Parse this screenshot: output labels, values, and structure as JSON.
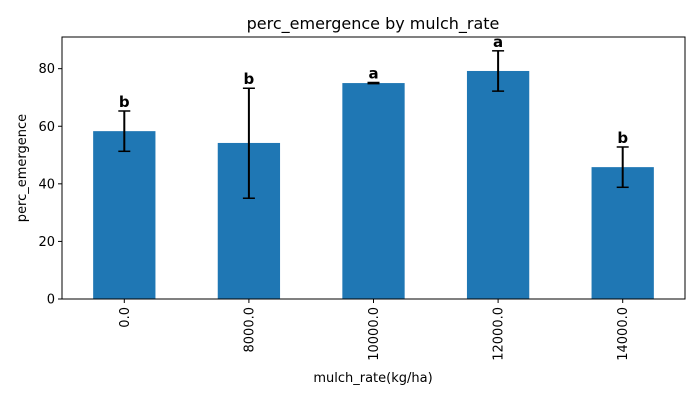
{
  "chart_data": {
    "type": "bar",
    "title": "perc_emergence by mulch_rate",
    "xlabel": "mulch_rate(kg/ha)",
    "ylabel": "perc_emergence",
    "categories": [
      "0.0",
      "8000.0",
      "10000.0",
      "12000.0",
      "14000.0"
    ],
    "values": [
      58.3,
      54.2,
      75.0,
      79.2,
      45.8
    ],
    "error_low": [
      51.3,
      35.0,
      74.8,
      72.2,
      38.8
    ],
    "error_high": [
      65.3,
      73.2,
      75.2,
      86.2,
      52.8
    ],
    "group_letters": [
      "b",
      "b",
      "a",
      "a",
      "b"
    ],
    "ylim": [
      0,
      91
    ],
    "yticks": [
      0,
      20,
      40,
      60,
      80
    ],
    "bar_color": "#1f77b4",
    "grid": false,
    "legend": "none"
  }
}
